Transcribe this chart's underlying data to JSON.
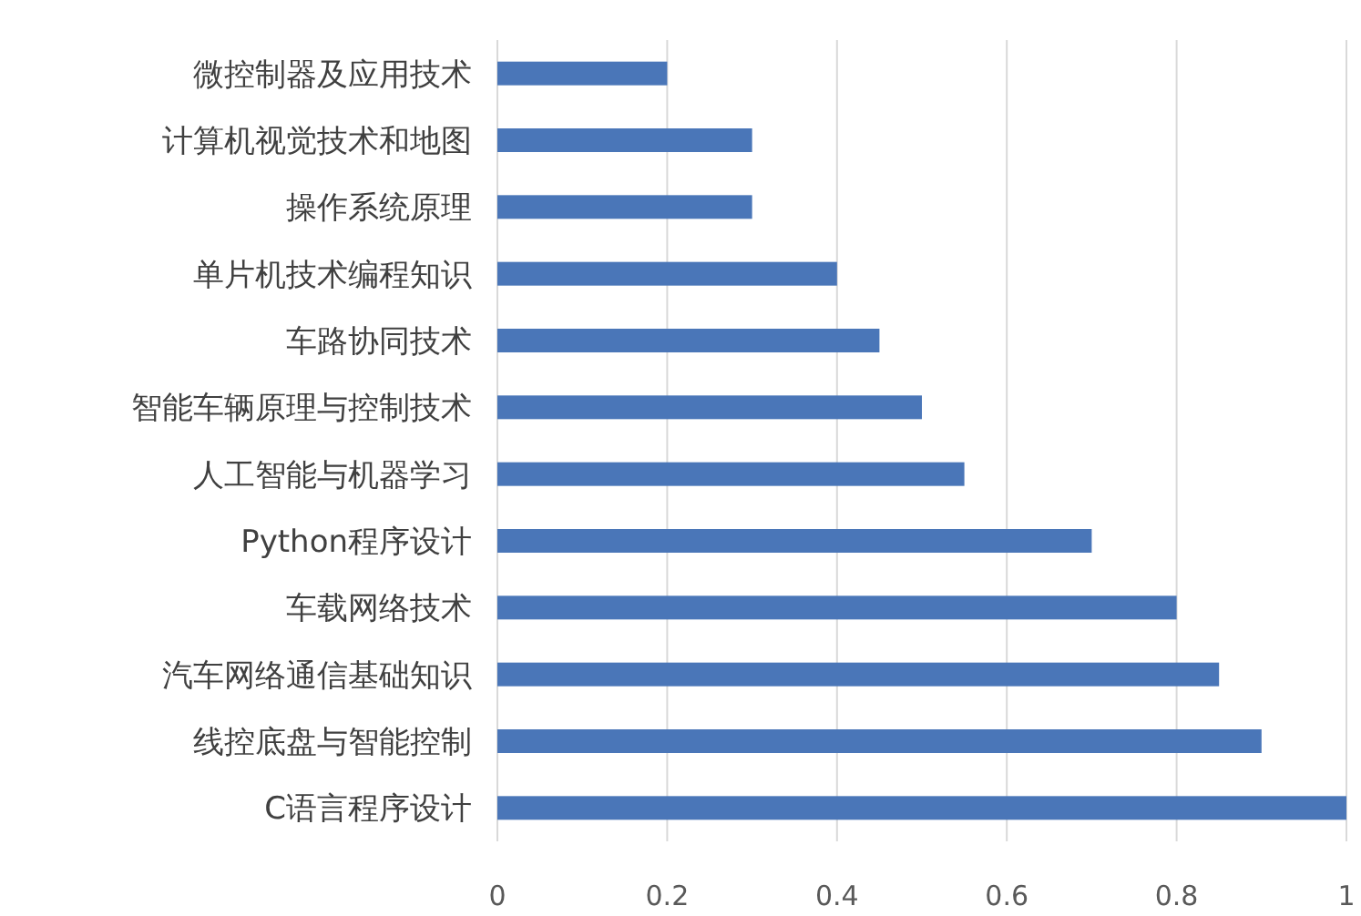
{
  "chart_data": {
    "type": "bar",
    "orientation": "horizontal",
    "categories": [
      "微控制器及应用技术",
      "计算机视觉技术和地图",
      "操作系统原理",
      "单片机技术编程知识",
      "车路协同技术",
      "智能车辆原理与控制技术",
      "人工智能与机器学习",
      "Python程序设计",
      "车载网络技术",
      "汽车网络通信基础知识",
      "线控底盘与智能控制",
      "C语言程序设计"
    ],
    "values": [
      0.2,
      0.3,
      0.3,
      0.4,
      0.45,
      0.5,
      0.55,
      0.7,
      0.8,
      0.85,
      0.9,
      1
    ],
    "color": "#4a76b8",
    "xlim": [
      0,
      1
    ],
    "xticks": [
      0,
      0.2,
      0.4,
      0.6,
      0.8,
      1
    ],
    "grid": "x"
  }
}
